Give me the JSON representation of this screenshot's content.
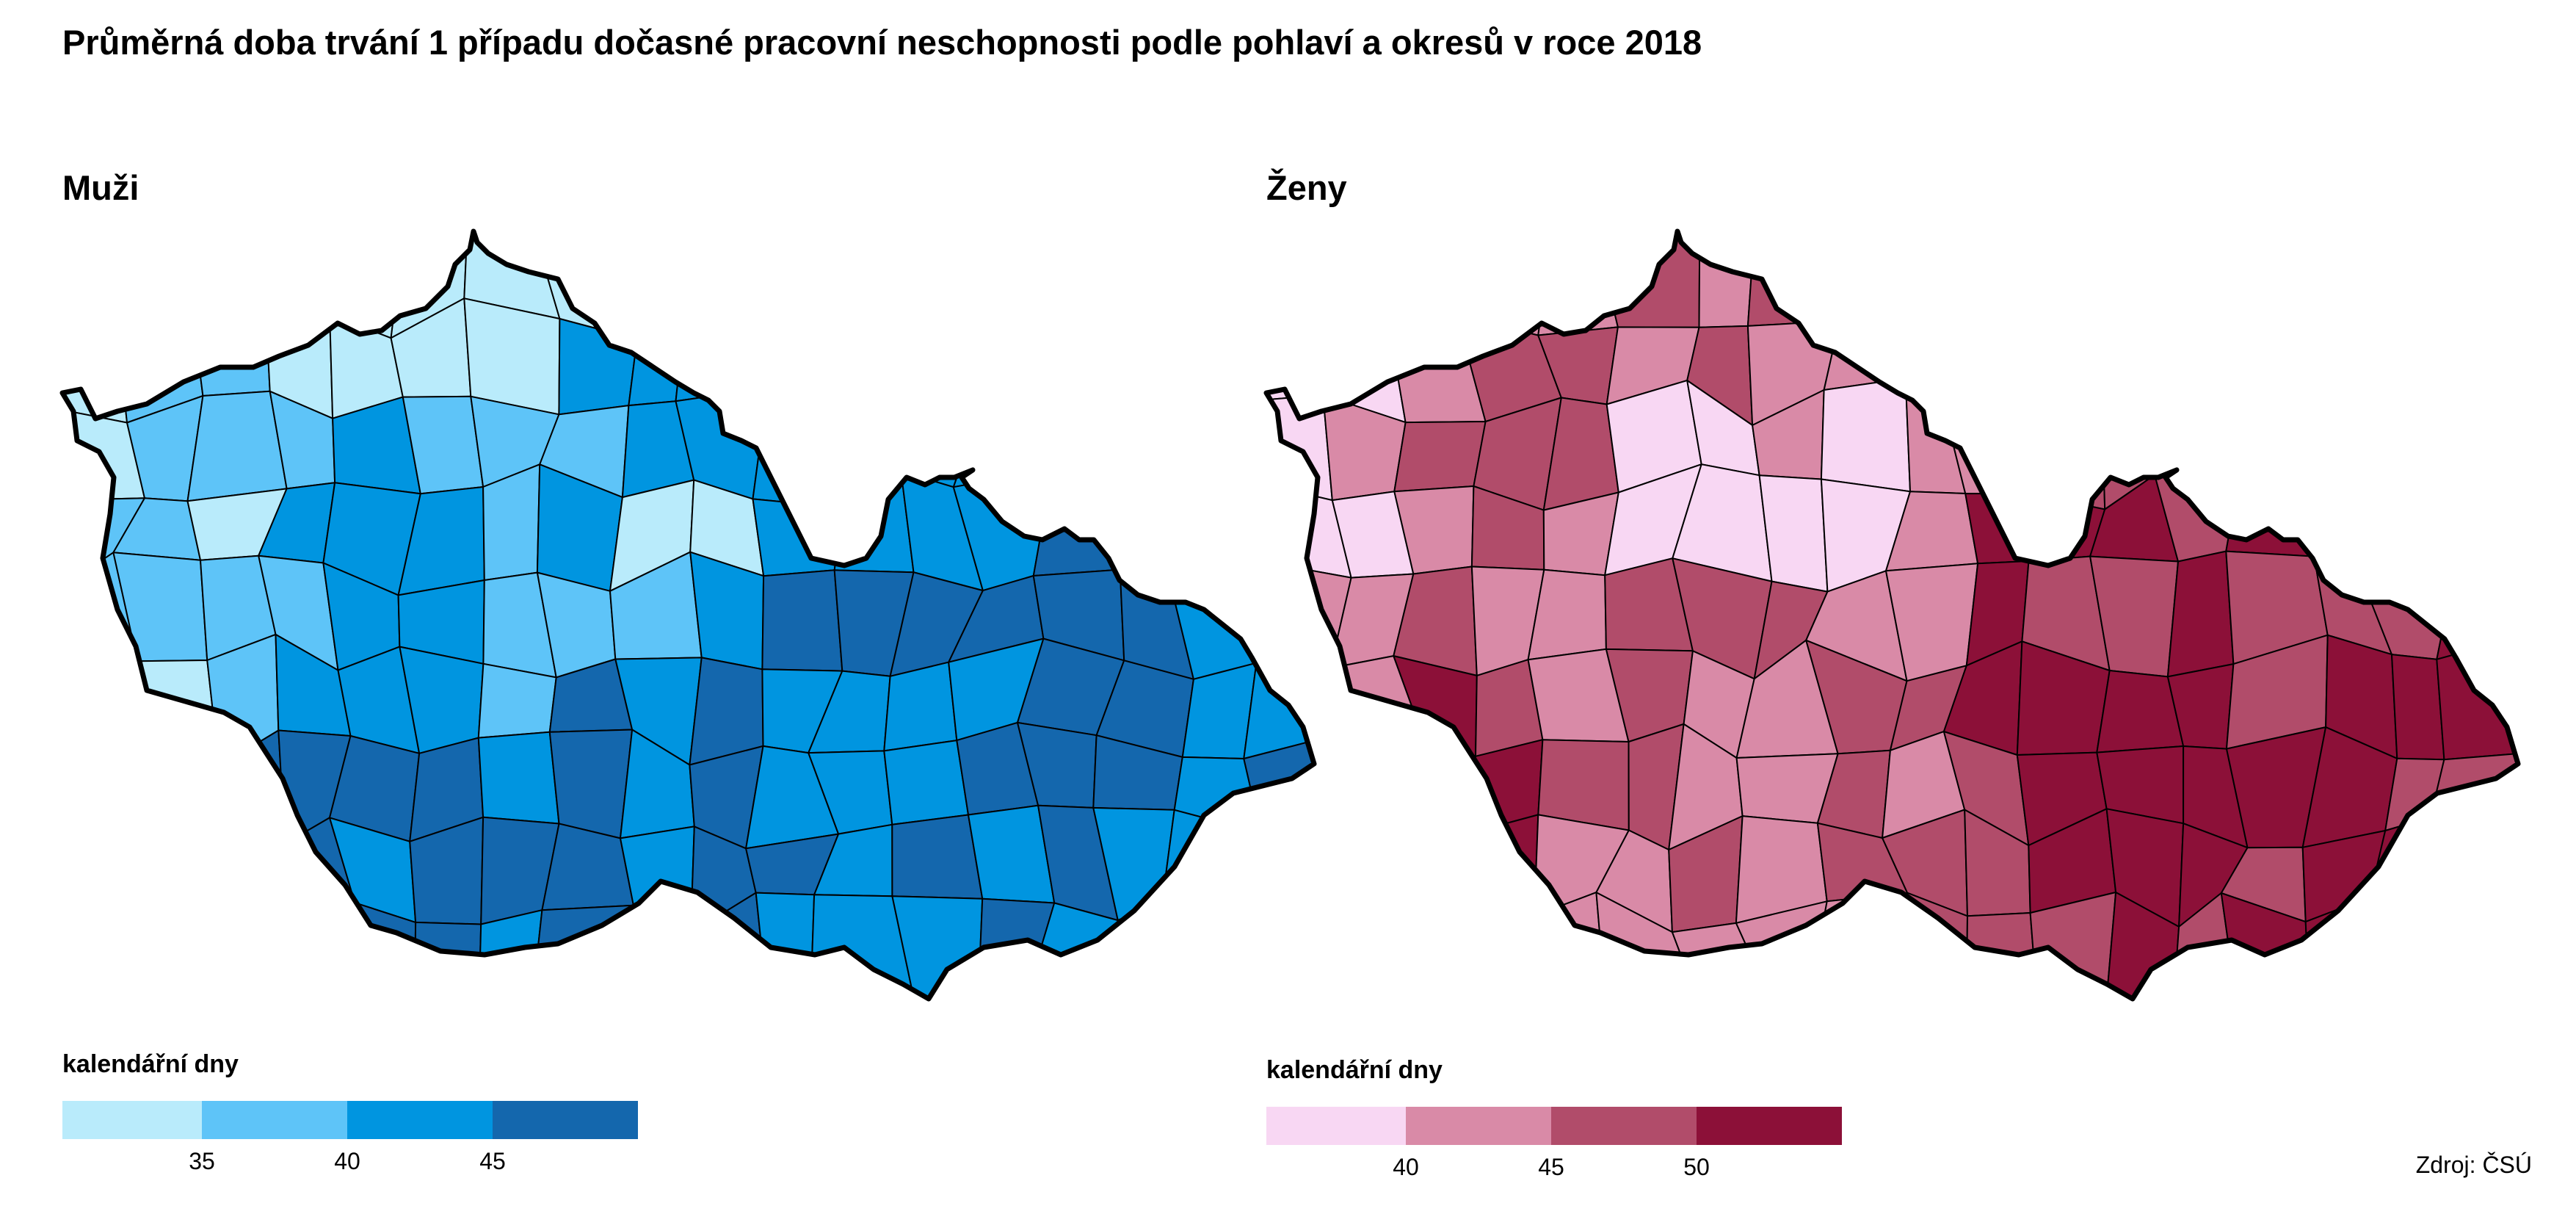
{
  "title": "Průměrná doba trvání 1 případu dočasné pracovní neschopnosti podle pohlaví a okresů v roce 2018",
  "source": "Zdroj: ČSÚ",
  "panels": {
    "men": {
      "title": "Muži",
      "legend": {
        "title": "kalendářní dny",
        "colors": [
          "#b9ebfb",
          "#5ec4f8",
          "#0095e0",
          "#1467ad"
        ],
        "ticks": [
          "35",
          "40",
          "45"
        ]
      }
    },
    "women": {
      "title": "Ženy",
      "legend": {
        "title": "kalendářní dny",
        "colors": [
          "#f8d7f3",
          "#d98aa7",
          "#b14c6a",
          "#8c1038"
        ],
        "ticks": [
          "40",
          "45",
          "50"
        ]
      }
    }
  },
  "chart_data": {
    "type": "choropleth",
    "unit": "kalendářní dny",
    "panels": [
      {
        "name": "Muži",
        "classes": [
          {
            "range": "< 35",
            "color": "#b9ebfb"
          },
          {
            "range": "35 – 40",
            "color": "#5ec4f8"
          },
          {
            "range": "40 – 45",
            "color": "#0095e0"
          },
          {
            "range": "> 45",
            "color": "#1467ad"
          }
        ]
      },
      {
        "name": "Ženy",
        "classes": [
          {
            "range": "< 40",
            "color": "#f8d7f3"
          },
          {
            "range": "40 – 45",
            "color": "#d98aa7"
          },
          {
            "range": "45 – 50",
            "color": "#b14c6a"
          },
          {
            "range": "> 50",
            "color": "#8c1038"
          }
        ]
      }
    ]
  }
}
